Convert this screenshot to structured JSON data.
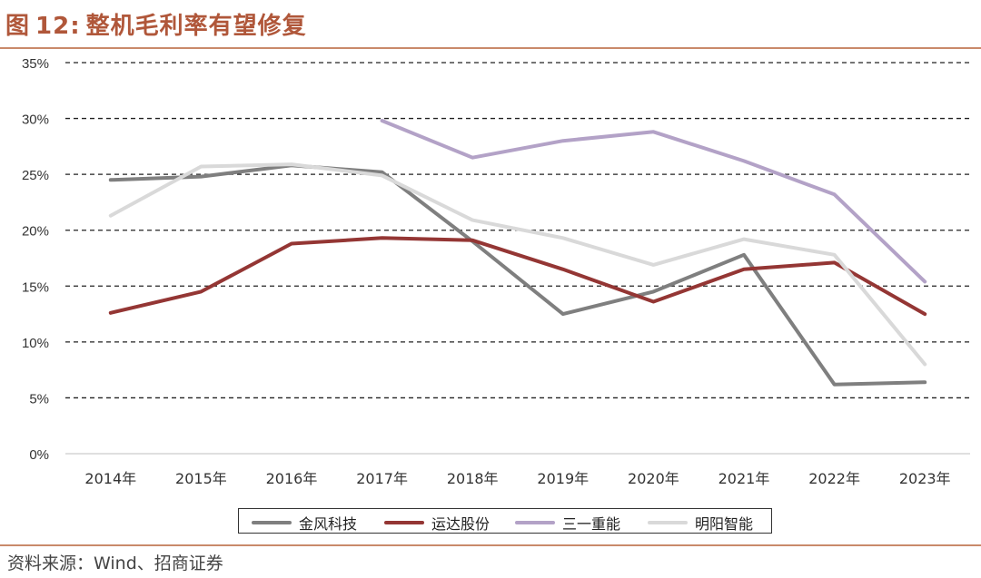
{
  "header": {
    "figure_label": "图",
    "figure_number": "12:",
    "title_text": "整机毛利率有望修复"
  },
  "source_text": "资料来源：Wind、招商证券",
  "chart_data": {
    "type": "line",
    "title": "整机毛利率有望修复",
    "xlabel": "",
    "ylabel": "",
    "categories": [
      "2014年",
      "2015年",
      "2016年",
      "2017年",
      "2018年",
      "2019年",
      "2020年",
      "2021年",
      "2022年",
      "2023年"
    ],
    "y_ticks": [
      "0%",
      "5%",
      "10%",
      "15%",
      "20%",
      "25%",
      "30%",
      "35%"
    ],
    "ylim": [
      0,
      35
    ],
    "grid": "dashed-horizontal",
    "legend_position": "bottom",
    "series": [
      {
        "name": "金风科技",
        "color": "#7f7f7f",
        "values": [
          24.5,
          24.8,
          25.8,
          25.2,
          19.0,
          12.5,
          14.5,
          17.8,
          6.2,
          6.4
        ]
      },
      {
        "name": "运达股份",
        "color": "#943634",
        "values": [
          12.6,
          14.5,
          18.8,
          19.3,
          19.1,
          16.5,
          13.6,
          16.5,
          17.1,
          12.5
        ]
      },
      {
        "name": "三一重能",
        "color": "#b3a2c7",
        "values": [
          null,
          null,
          null,
          29.8,
          26.5,
          28.0,
          28.8,
          26.2,
          23.2,
          15.4
        ]
      },
      {
        "name": "明阳智能",
        "color": "#d9d9d9",
        "values": [
          21.3,
          25.7,
          25.9,
          24.9,
          20.9,
          19.3,
          16.9,
          19.2,
          17.8,
          8.0
        ]
      }
    ]
  }
}
